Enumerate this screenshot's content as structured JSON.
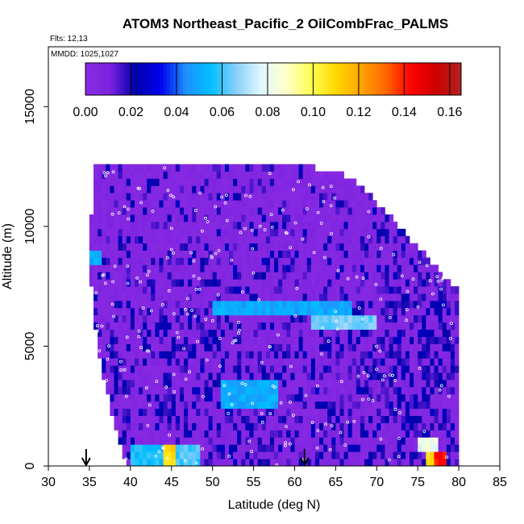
{
  "chart_data": {
    "type": "heatmap",
    "title": "ATOM3 Northeast_Pacific_2 OilCombFrac_PALMS",
    "flights_label": "Flts: 12,13",
    "mmdd_label": "MMDD: 1025,1027",
    "xlabel": "Latitude (deg N)",
    "ylabel": "Altitude (m)",
    "xlim": [
      30,
      85
    ],
    "ylim": [
      0,
      17500
    ],
    "x_ticks": [
      30,
      35,
      40,
      45,
      50,
      55,
      60,
      65,
      70,
      75,
      80,
      85
    ],
    "x_tick_labels": [
      "30",
      "35",
      "40",
      "45",
      "50",
      "55",
      "60",
      "65",
      "70",
      "75",
      "80",
      "85"
    ],
    "y_ticks": [
      0,
      5000,
      10000,
      15000
    ],
    "y_tick_labels": [
      "0",
      "5000",
      "10000",
      "15000"
    ],
    "colorbar": {
      "range": [
        0,
        0.165
      ],
      "ticks": [
        0,
        0.02,
        0.04,
        0.06,
        0.08,
        0.1,
        0.12,
        0.14,
        0.16
      ],
      "tick_labels": [
        "0.00",
        "0.02",
        "0.04",
        "0.06",
        "0.08",
        "0.10",
        "0.12",
        "0.14",
        "0.16"
      ],
      "colors": [
        "#8a2be2",
        "#7a22e0",
        "#0000aa",
        "#0000ee",
        "#1e90ff",
        "#00bfff",
        "#87cefa",
        "#e0f7ff",
        "#ffffcc",
        "#ffff55",
        "#ffd700",
        "#ffa500",
        "#ff6600",
        "#ff0000",
        "#cc0000",
        "#b22222"
      ]
    },
    "markers": [
      {
        "label": "arrow",
        "lat": 34.6
      },
      {
        "label": "arrow",
        "lat": 61.2
      }
    ],
    "envelope": [
      {
        "lat": 35.0,
        "alt_top": 8200
      },
      {
        "lat": 35.5,
        "alt_top": 12500
      },
      {
        "lat": 62.0,
        "alt_top": 12500
      },
      {
        "lat": 66.0,
        "alt_top": 12200
      },
      {
        "lat": 68.0,
        "alt_top": 11700
      },
      {
        "lat": 70.0,
        "alt_top": 11000
      },
      {
        "lat": 72.0,
        "alt_top": 10300
      },
      {
        "lat": 74.0,
        "alt_top": 9500
      },
      {
        "lat": 76.0,
        "alt_top": 8800
      },
      {
        "lat": 78.0,
        "alt_top": 8000
      },
      {
        "lat": 80.0,
        "alt_top": 7300
      }
    ],
    "bottom_edges": [
      {
        "lat": 35.0,
        "alt": 8200
      },
      {
        "lat": 36.0,
        "alt": 5000
      },
      {
        "lat": 37.5,
        "alt": 2500
      },
      {
        "lat": 39.5,
        "alt": 0
      }
    ],
    "hotspots": [
      {
        "lat_min": 40.0,
        "lat_max": 44.0,
        "alt_min": 0,
        "alt_max": 1000,
        "value": 0.055
      },
      {
        "lat_min": 44.0,
        "lat_max": 45.5,
        "alt_min": 0,
        "alt_max": 1000,
        "value": 0.11
      },
      {
        "lat_min": 45.5,
        "lat_max": 48.5,
        "alt_min": 0,
        "alt_max": 1000,
        "value": 0.06
      },
      {
        "lat_min": 50.0,
        "lat_max": 67.0,
        "alt_min": 6300,
        "alt_max": 6900,
        "value": 0.05
      },
      {
        "lat_min": 62.0,
        "lat_max": 70.0,
        "alt_min": 5700,
        "alt_max": 6300,
        "value": 0.065
      },
      {
        "lat_min": 51.0,
        "lat_max": 58.0,
        "alt_min": 2400,
        "alt_max": 3600,
        "value": 0.05
      },
      {
        "lat_min": 35.0,
        "lat_max": 36.5,
        "alt_min": 8400,
        "alt_max": 8900,
        "value": 0.05
      },
      {
        "lat_min": 75.0,
        "lat_max": 77.5,
        "alt_min": 600,
        "alt_max": 1100,
        "value": 0.08
      },
      {
        "lat_min": 76.0,
        "lat_max": 77.0,
        "alt_min": 0,
        "alt_max": 600,
        "value": 0.11
      },
      {
        "lat_min": 77.0,
        "lat_max": 78.5,
        "alt_min": 0,
        "alt_max": 600,
        "value": 0.14
      }
    ]
  }
}
